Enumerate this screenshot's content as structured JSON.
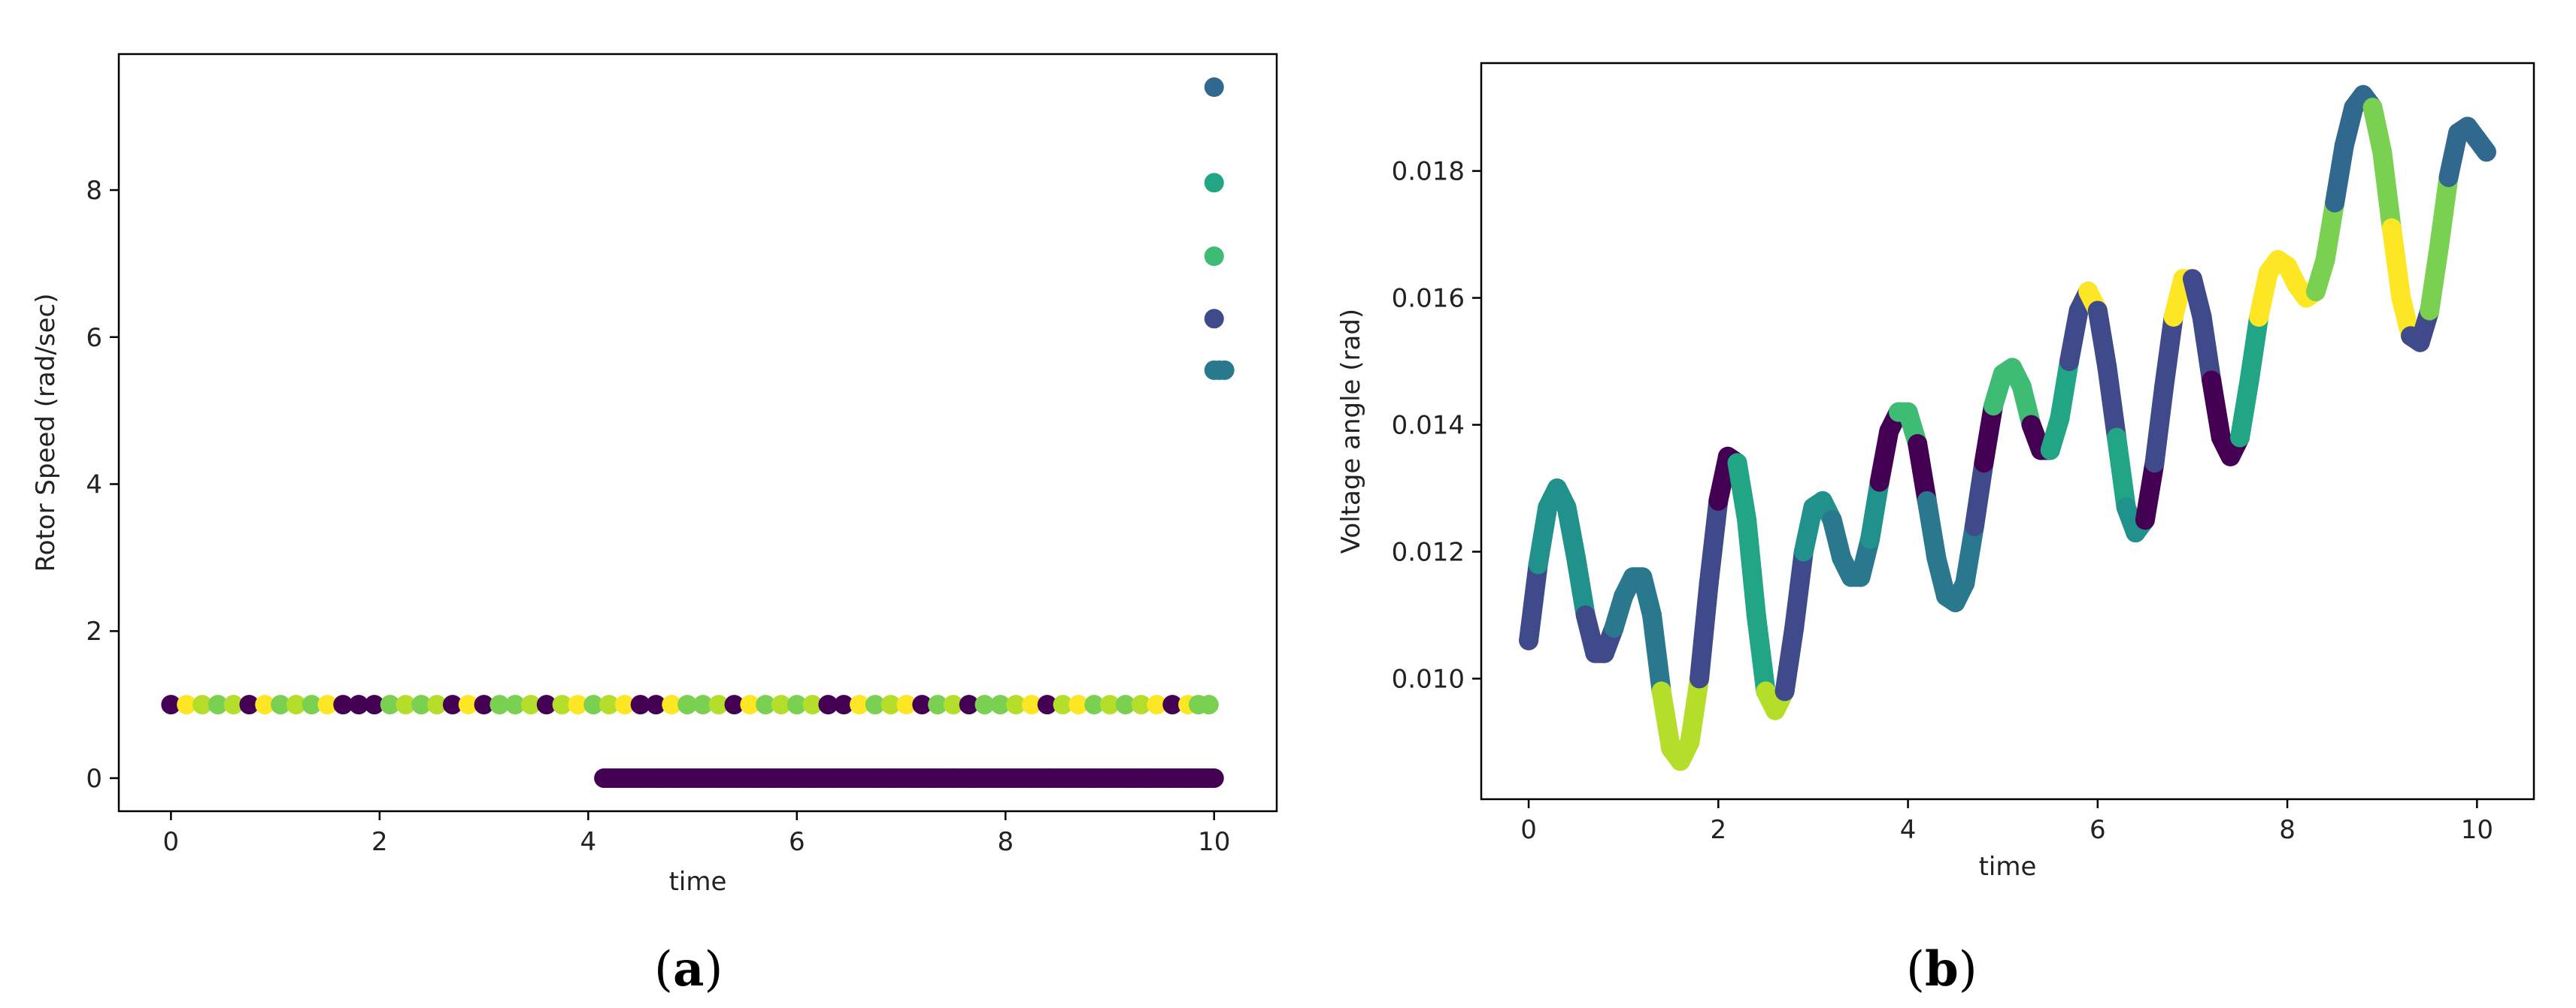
{
  "chart_data": [
    {
      "type": "scatter",
      "panel_label": "a",
      "xlabel": "time",
      "ylabel": "Rotor Speed (rad/sec)",
      "xlim": [
        -0.5,
        10.6
      ],
      "ylim": [
        -0.45,
        9.85
      ],
      "xticks": [
        "0",
        "2",
        "4",
        "6",
        "8",
        "10"
      ],
      "yticks": [
        "0",
        "2",
        "4",
        "6",
        "8"
      ],
      "grid": false,
      "series": [
        {
          "values_note_free": true,
          "points": [
            [
              0.0,
              1.0,
              "#440154"
            ],
            [
              0.15,
              1.0,
              "#fde725"
            ],
            [
              0.3,
              1.0,
              "#b5de2b"
            ],
            [
              0.45,
              1.0,
              "#7ad151"
            ],
            [
              0.6,
              1.0,
              "#b5de2b"
            ],
            [
              0.75,
              1.0,
              "#440154"
            ],
            [
              0.9,
              1.0,
              "#fde725"
            ],
            [
              1.05,
              1.0,
              "#7ad151"
            ],
            [
              1.2,
              1.0,
              "#b5de2b"
            ],
            [
              1.35,
              1.0,
              "#7ad151"
            ],
            [
              1.5,
              1.0,
              "#fde725"
            ],
            [
              1.65,
              1.0,
              "#440154"
            ],
            [
              1.8,
              1.0,
              "#440154"
            ],
            [
              1.95,
              1.0,
              "#440154"
            ],
            [
              2.1,
              1.0,
              "#7ad151"
            ],
            [
              2.25,
              1.0,
              "#b5de2b"
            ],
            [
              2.4,
              1.0,
              "#7ad151"
            ],
            [
              2.55,
              1.0,
              "#b5de2b"
            ],
            [
              2.7,
              1.0,
              "#440154"
            ],
            [
              2.85,
              1.0,
              "#fde725"
            ],
            [
              3.0,
              1.0,
              "#440154"
            ],
            [
              3.15,
              1.0,
              "#7ad151"
            ],
            [
              3.3,
              1.0,
              "#7ad151"
            ],
            [
              3.45,
              1.0,
              "#b5de2b"
            ],
            [
              3.6,
              1.0,
              "#440154"
            ],
            [
              3.75,
              1.0,
              "#b5de2b"
            ],
            [
              3.9,
              1.0,
              "#fde725"
            ],
            [
              4.05,
              1.0,
              "#7ad151"
            ],
            [
              4.2,
              1.0,
              "#b5de2b"
            ],
            [
              4.35,
              1.0,
              "#fde725"
            ],
            [
              4.5,
              1.0,
              "#440154"
            ],
            [
              4.65,
              1.0,
              "#440154"
            ],
            [
              4.8,
              1.0,
              "#fde725"
            ],
            [
              4.95,
              1.0,
              "#7ad151"
            ],
            [
              5.1,
              1.0,
              "#7ad151"
            ],
            [
              5.25,
              1.0,
              "#b5de2b"
            ],
            [
              5.4,
              1.0,
              "#440154"
            ],
            [
              5.55,
              1.0,
              "#fde725"
            ],
            [
              5.7,
              1.0,
              "#7ad151"
            ],
            [
              5.85,
              1.0,
              "#b5de2b"
            ],
            [
              6.0,
              1.0,
              "#7ad151"
            ],
            [
              6.15,
              1.0,
              "#b5de2b"
            ],
            [
              6.3,
              1.0,
              "#440154"
            ],
            [
              6.45,
              1.0,
              "#440154"
            ],
            [
              6.6,
              1.0,
              "#fde725"
            ],
            [
              6.75,
              1.0,
              "#7ad151"
            ],
            [
              6.9,
              1.0,
              "#b5de2b"
            ],
            [
              7.05,
              1.0,
              "#fde725"
            ],
            [
              7.2,
              1.0,
              "#440154"
            ],
            [
              7.35,
              1.0,
              "#7ad151"
            ],
            [
              7.5,
              1.0,
              "#b5de2b"
            ],
            [
              7.65,
              1.0,
              "#440154"
            ],
            [
              7.8,
              1.0,
              "#7ad151"
            ],
            [
              7.95,
              1.0,
              "#7ad151"
            ],
            [
              8.1,
              1.0,
              "#b5de2b"
            ],
            [
              8.25,
              1.0,
              "#fde725"
            ],
            [
              8.4,
              1.0,
              "#440154"
            ],
            [
              8.55,
              1.0,
              "#b5de2b"
            ],
            [
              8.7,
              1.0,
              "#fde725"
            ],
            [
              8.85,
              1.0,
              "#7ad151"
            ],
            [
              9.0,
              1.0,
              "#b5de2b"
            ],
            [
              9.15,
              1.0,
              "#7ad151"
            ],
            [
              9.3,
              1.0,
              "#b5de2b"
            ],
            [
              9.45,
              1.0,
              "#fde725"
            ],
            [
              9.6,
              1.0,
              "#440154"
            ],
            [
              9.75,
              1.0,
              "#fde725"
            ],
            [
              9.85,
              1.0,
              "#7ad151"
            ],
            [
              9.95,
              1.0,
              "#7ad151"
            ],
            [
              10.0,
              9.4,
              "#31688e"
            ],
            [
              10.0,
              8.1,
              "#21a585"
            ],
            [
              10.0,
              7.1,
              "#3fbc73"
            ],
            [
              10.0,
              6.25,
              "#3e4a89"
            ],
            [
              10.0,
              5.55,
              "#2a788e"
            ],
            [
              10.05,
              5.55,
              "#2a788e"
            ],
            [
              10.1,
              5.55,
              "#2a788e"
            ]
          ],
          "zero_band": {
            "x_start": 4.15,
            "x_end": 10.0,
            "y": 0.0,
            "color": "#440154"
          }
        }
      ]
    },
    {
      "type": "line",
      "panel_label": "b",
      "xlabel": "time",
      "ylabel": "Voltage angle (rad)",
      "xlim": [
        -0.5,
        10.6
      ],
      "ylim": [
        0.0081,
        0.0197
      ],
      "xticks": [
        "0",
        "2",
        "4",
        "6",
        "8",
        "10"
      ],
      "yticks": [
        "0.010",
        "0.012",
        "0.014",
        "0.016",
        "0.018"
      ],
      "grid": false,
      "series": [
        {
          "points": [
            [
              0.0,
              0.0106
            ],
            [
              0.1,
              0.0118
            ],
            [
              0.2,
              0.0127
            ],
            [
              0.3,
              0.013
            ],
            [
              0.4,
              0.0127
            ],
            [
              0.5,
              0.0119
            ],
            [
              0.6,
              0.011
            ],
            [
              0.7,
              0.0104
            ],
            [
              0.8,
              0.0104
            ],
            [
              0.9,
              0.0108
            ],
            [
              1.0,
              0.0113
            ],
            [
              1.1,
              0.0116
            ],
            [
              1.2,
              0.0116
            ],
            [
              1.3,
              0.011
            ],
            [
              1.4,
              0.0098
            ],
            [
              1.5,
              0.0089
            ],
            [
              1.6,
              0.0087
            ],
            [
              1.7,
              0.009
            ],
            [
              1.8,
              0.01
            ],
            [
              1.9,
              0.0115
            ],
            [
              2.0,
              0.0128
            ],
            [
              2.1,
              0.0135
            ],
            [
              2.2,
              0.0134
            ],
            [
              2.3,
              0.0125
            ],
            [
              2.4,
              0.011
            ],
            [
              2.5,
              0.0098
            ],
            [
              2.6,
              0.0095
            ],
            [
              2.7,
              0.0098
            ],
            [
              2.8,
              0.0108
            ],
            [
              2.9,
              0.012
            ],
            [
              3.0,
              0.0127
            ],
            [
              3.1,
              0.0128
            ],
            [
              3.2,
              0.0125
            ],
            [
              3.3,
              0.0119
            ],
            [
              3.4,
              0.0116
            ],
            [
              3.5,
              0.0116
            ],
            [
              3.6,
              0.0122
            ],
            [
              3.7,
              0.0131
            ],
            [
              3.8,
              0.0139
            ],
            [
              3.9,
              0.0142
            ],
            [
              4.0,
              0.0142
            ],
            [
              4.1,
              0.0137
            ],
            [
              4.2,
              0.0128
            ],
            [
              4.3,
              0.0119
            ],
            [
              4.4,
              0.0113
            ],
            [
              4.5,
              0.0112
            ],
            [
              4.6,
              0.0115
            ],
            [
              4.7,
              0.0124
            ],
            [
              4.8,
              0.0134
            ],
            [
              4.9,
              0.0143
            ],
            [
              5.0,
              0.0148
            ],
            [
              5.1,
              0.0149
            ],
            [
              5.2,
              0.0146
            ],
            [
              5.3,
              0.014
            ],
            [
              5.4,
              0.0136
            ],
            [
              5.5,
              0.0136
            ],
            [
              5.6,
              0.0141
            ],
            [
              5.7,
              0.015
            ],
            [
              5.8,
              0.0158
            ],
            [
              5.9,
              0.0161
            ],
            [
              6.0,
              0.0158
            ],
            [
              6.1,
              0.0149
            ],
            [
              6.2,
              0.0138
            ],
            [
              6.3,
              0.0127
            ],
            [
              6.4,
              0.0123
            ],
            [
              6.5,
              0.0125
            ],
            [
              6.6,
              0.0134
            ],
            [
              6.7,
              0.0146
            ],
            [
              6.8,
              0.0157
            ],
            [
              6.9,
              0.0163
            ],
            [
              7.0,
              0.0163
            ],
            [
              7.1,
              0.0157
            ],
            [
              7.2,
              0.0147
            ],
            [
              7.3,
              0.0138
            ],
            [
              7.4,
              0.0135
            ],
            [
              7.5,
              0.0138
            ],
            [
              7.6,
              0.0147
            ],
            [
              7.7,
              0.0157
            ],
            [
              7.8,
              0.0164
            ],
            [
              7.9,
              0.0166
            ],
            [
              8.0,
              0.0165
            ],
            [
              8.1,
              0.0162
            ],
            [
              8.2,
              0.016
            ],
            [
              8.3,
              0.0161
            ],
            [
              8.4,
              0.0166
            ],
            [
              8.5,
              0.0175
            ],
            [
              8.6,
              0.0184
            ],
            [
              8.7,
              0.019
            ],
            [
              8.8,
              0.0192
            ],
            [
              8.9,
              0.019
            ],
            [
              9.0,
              0.0183
            ],
            [
              9.1,
              0.0171
            ],
            [
              9.2,
              0.016
            ],
            [
              9.3,
              0.0154
            ],
            [
              9.4,
              0.0153
            ],
            [
              9.5,
              0.0158
            ],
            [
              9.6,
              0.0168
            ],
            [
              9.7,
              0.0179
            ],
            [
              9.8,
              0.0186
            ],
            [
              9.9,
              0.0187
            ],
            [
              10.0,
              0.0185
            ],
            [
              10.1,
              0.0183
            ]
          ],
          "segment_colors": [
            "#3e4a89",
            "#21918c",
            "#21918c",
            "#21918c",
            "#21918c",
            "#21918c",
            "#3e4a89",
            "#3e4a89",
            "#3e4a89",
            "#2a788e",
            "#2a788e",
            "#2a788e",
            "#2a788e",
            "#2a788e",
            "#b5de2b",
            "#b5de2b",
            "#b5de2b",
            "#b5de2b",
            "#3e4a89",
            "#3e4a89",
            "#440154",
            "#440154",
            "#21a585",
            "#21a585",
            "#21a585",
            "#b5de2b",
            "#b5de2b",
            "#3e4a89",
            "#3e4a89",
            "#21918c",
            "#21918c",
            "#21918c",
            "#2a788e",
            "#2a788e",
            "#2a788e",
            "#2a788e",
            "#21918c",
            "#440154",
            "#440154",
            "#3fbc73",
            "#3fbc73",
            "#440154",
            "#2a788e",
            "#2a788e",
            "#2a788e",
            "#2a788e",
            "#2a788e",
            "#3e4a89",
            "#440154",
            "#3fbc73",
            "#3fbc73",
            "#3fbc73",
            "#3fbc73",
            "#440154",
            "#440154",
            "#21a585",
            "#21a585",
            "#3e4a89",
            "#3e4a89",
            "#fde725",
            "#3e4a89",
            "#3e4a89",
            "#21a585",
            "#21918c",
            "#21918c",
            "#440154",
            "#3e4a89",
            "#3e4a89",
            "#fde725",
            "#fde725",
            "#3e4a89",
            "#3e4a89",
            "#440154",
            "#440154",
            "#440154",
            "#21a585",
            "#21a585",
            "#fde725",
            "#fde725",
            "#fde725",
            "#fde725",
            "#fde725",
            "#fde725",
            "#7ad151",
            "#7ad151",
            "#31688e",
            "#31688e",
            "#31688e",
            "#31688e",
            "#7ad151",
            "#7ad151",
            "#fde725",
            "#fde725",
            "#3e4a89",
            "#3e4a89",
            "#7ad151",
            "#7ad151",
            "#31688e",
            "#31688e",
            "#31688e",
            "#31688e"
          ]
        }
      ]
    }
  ]
}
